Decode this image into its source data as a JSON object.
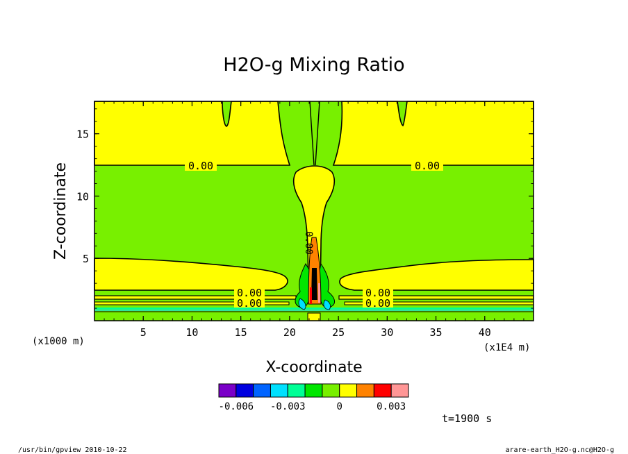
{
  "chart_data": {
    "type": "heatmap",
    "title": "H2O-g Mixing Ratio",
    "xlabel": "X-coordinate",
    "ylabel": "Z-coordinate",
    "x_scale_note": "(x1E4 m)",
    "y_scale_note": "(x1000 m)",
    "xlim": [
      0,
      45
    ],
    "ylim": [
      0,
      17.6
    ],
    "x_ticks": [
      5,
      10,
      15,
      20,
      25,
      30,
      35,
      40
    ],
    "y_ticks": [
      5,
      10,
      15
    ],
    "contour_labels": [
      "0.00",
      "0.00",
      "0.00",
      "0.00",
      "0.00",
      "0.00",
      "0.00",
      "0.00"
    ],
    "colorbar": {
      "colors": [
        "#7a00c8",
        "#0000e0",
        "#0064ff",
        "#00e0ff",
        "#00ff96",
        "#00e600",
        "#78f000",
        "#ffff00",
        "#ff8200",
        "#ff0000",
        "#ff9696"
      ],
      "tick_labels": [
        "-0.006",
        "-0.003",
        "0",
        "0.003"
      ]
    },
    "time_label": "t=1900 s",
    "footer_left": "/usr/bin/gpview   2010-10-22",
    "footer_right": "arare-earth_H2O-g.nc@H2O-g"
  }
}
